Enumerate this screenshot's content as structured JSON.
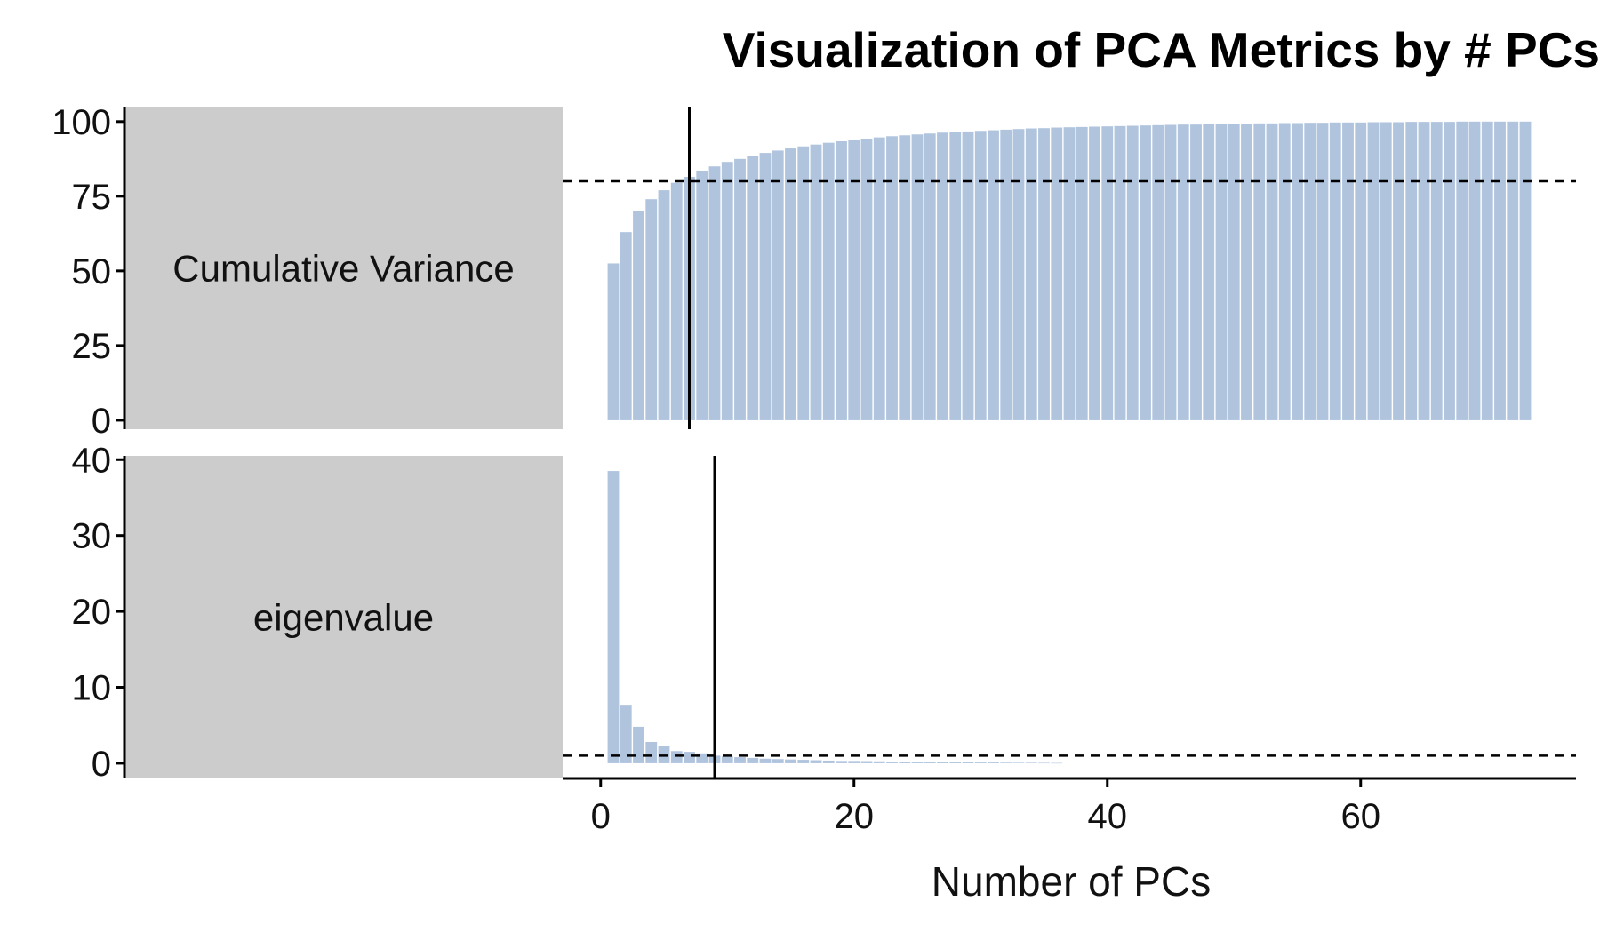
{
  "chart_data": {
    "type": "bar",
    "title": "Visualization of PCA Metrics by # PCs",
    "xlabel": "Number of PCs",
    "ylabel": "",
    "xlim": [
      -3,
      77
    ],
    "x_ticks": [
      0,
      20,
      40,
      60
    ],
    "bar_color": "#b0c4de",
    "facets": [
      {
        "label": "Cumulative Variance",
        "ylim": [
          -3,
          105
        ],
        "y_ticks": [
          0,
          25,
          50,
          75,
          100
        ],
        "threshold": 80,
        "cutoff_pc": 7,
        "x": [
          1,
          2,
          3,
          4,
          5,
          6,
          7,
          8,
          9,
          10,
          11,
          12,
          13,
          14,
          15,
          16,
          17,
          18,
          19,
          20,
          21,
          22,
          23,
          24,
          25,
          26,
          27,
          28,
          29,
          30,
          31,
          32,
          33,
          34,
          35,
          36,
          37,
          38,
          39,
          40,
          41,
          42,
          43,
          44,
          45,
          46,
          47,
          48,
          49,
          50,
          51,
          52,
          53,
          54,
          55,
          56,
          57,
          58,
          59,
          60,
          61,
          62,
          63,
          64,
          65,
          66,
          67,
          68,
          69,
          70,
          71,
          72,
          73
        ],
        "values": [
          52.5,
          63,
          70,
          74,
          77,
          79.5,
          81.5,
          83.5,
          85,
          86.5,
          87.5,
          88.5,
          89.5,
          90.3,
          91,
          91.7,
          92.3,
          92.9,
          93.4,
          93.9,
          94.3,
          94.7,
          95.1,
          95.4,
          95.7,
          96,
          96.3,
          96.5,
          96.7,
          96.9,
          97.1,
          97.3,
          97.5,
          97.7,
          97.8,
          98,
          98.1,
          98.2,
          98.3,
          98.4,
          98.5,
          98.6,
          98.7,
          98.8,
          98.9,
          99,
          99,
          99.1,
          99.2,
          99.2,
          99.3,
          99.4,
          99.4,
          99.5,
          99.5,
          99.6,
          99.6,
          99.7,
          99.7,
          99.7,
          99.8,
          99.8,
          99.8,
          99.9,
          99.9,
          99.9,
          99.9,
          100,
          100,
          100,
          100,
          100,
          100
        ]
      },
      {
        "label": "eigenvalue",
        "ylim": [
          -2,
          40.5
        ],
        "y_ticks": [
          0,
          10,
          20,
          30,
          40
        ],
        "threshold": 1,
        "cutoff_pc": 9,
        "x": [
          1,
          2,
          3,
          4,
          5,
          6,
          7,
          8,
          9,
          10,
          11,
          12,
          13,
          14,
          15,
          16,
          17,
          18,
          19,
          20,
          21,
          22,
          23,
          24,
          25,
          26,
          27,
          28,
          29,
          30,
          31,
          32,
          33,
          34,
          35,
          36
        ],
        "values": [
          38.5,
          7.7,
          4.8,
          2.8,
          2.3,
          1.6,
          1.5,
          1.3,
          1.0,
          0.9,
          0.8,
          0.7,
          0.6,
          0.55,
          0.5,
          0.45,
          0.4,
          0.35,
          0.3,
          0.3,
          0.28,
          0.25,
          0.22,
          0.2,
          0.18,
          0.17,
          0.15,
          0.14,
          0.12,
          0.1,
          0.1,
          0.08,
          0.07,
          0.06,
          0.05,
          0.04
        ]
      }
    ]
  }
}
